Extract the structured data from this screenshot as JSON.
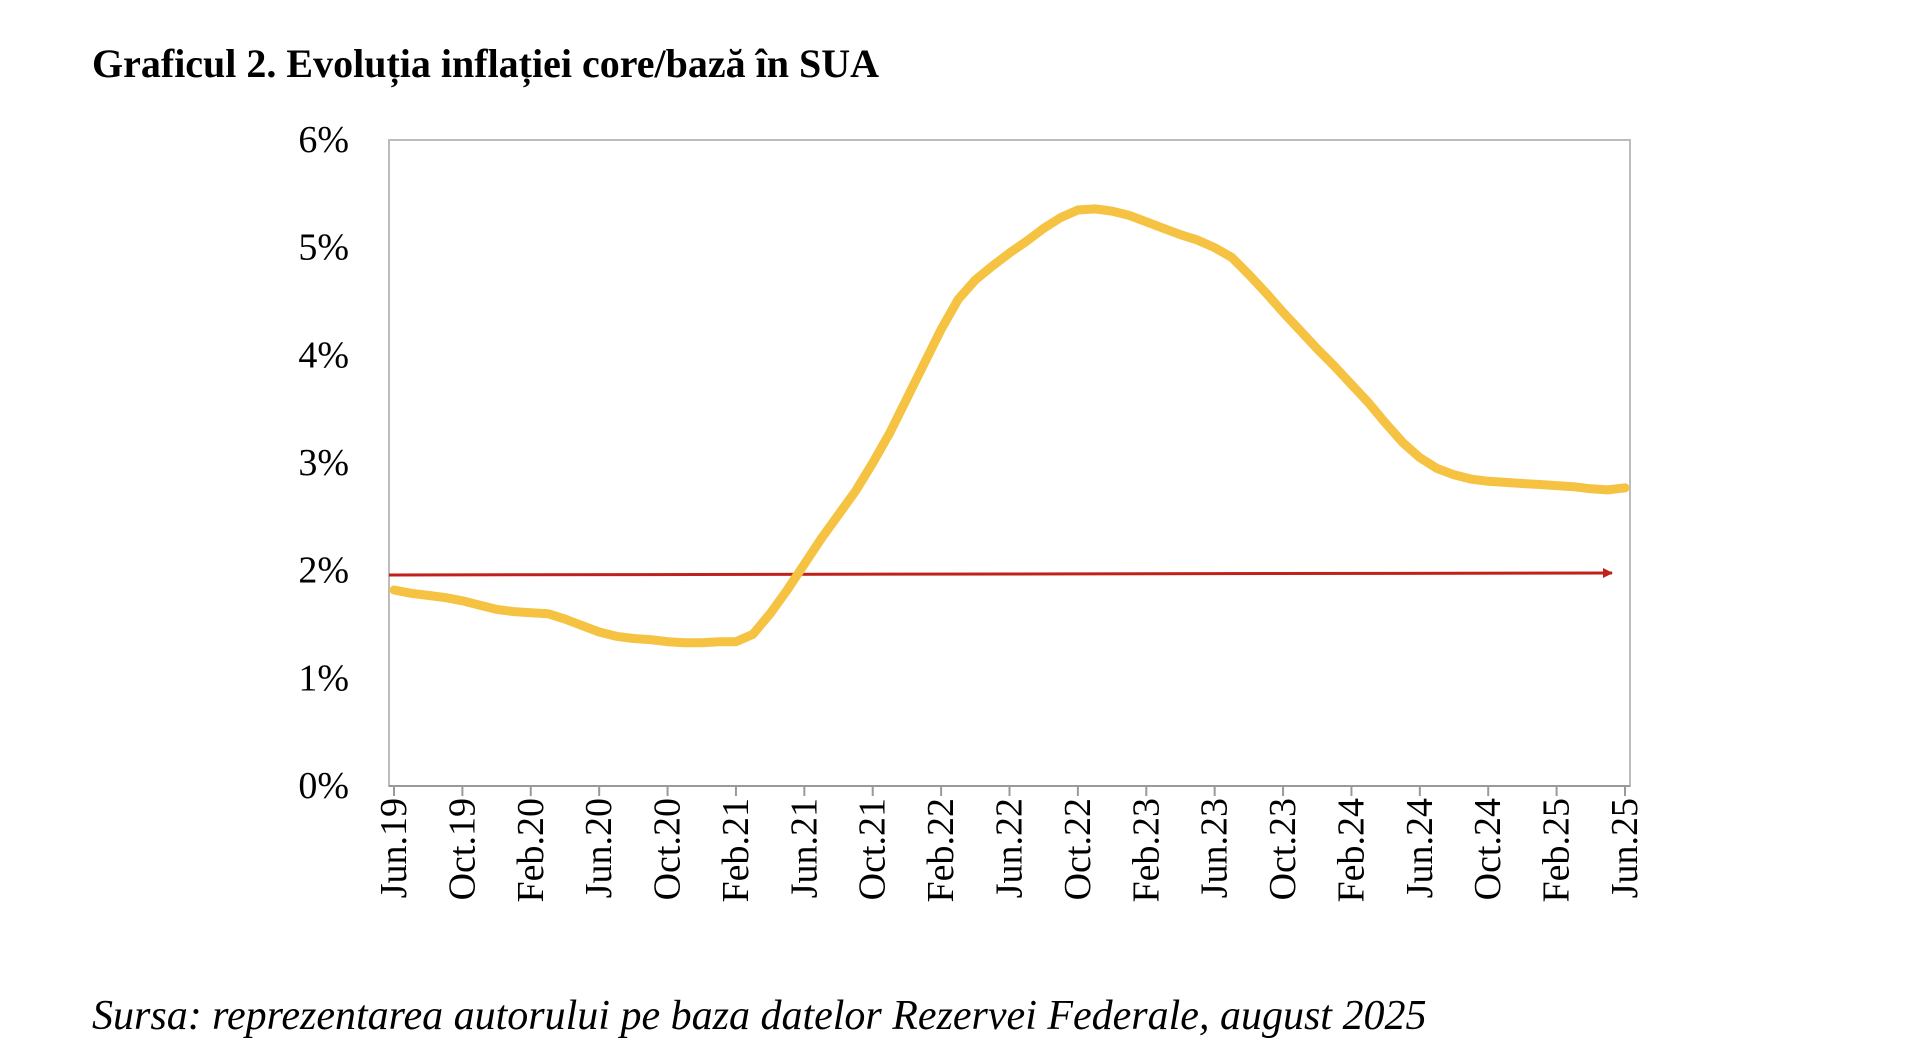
{
  "title": "Graficul 2. Evoluția inflației core/bază în SUA",
  "source": "Sursa: reprezentarea autorului pe baza datelor Rezervei Federale, august 2025",
  "colors": {
    "series": "#f5c242",
    "target_arrow": "#c0211b",
    "frame": "#bcbcbc",
    "axis": "#999999"
  },
  "chart_data": {
    "type": "line",
    "title": "Graficul 2. Evoluția inflației core/bază în SUA",
    "xlabel": "",
    "ylabel": "",
    "ylim": [
      0,
      6
    ],
    "y_ticks": [
      "0%",
      "1%",
      "2%",
      "3%",
      "4%",
      "5%",
      "6%"
    ],
    "x_tick_labels": [
      "Jun.19",
      "Oct.19",
      "Feb.20",
      "Jun.20",
      "Oct.20",
      "Feb.21",
      "Jun.21",
      "Oct.21",
      "Feb.22",
      "Jun.22",
      "Oct.22",
      "Feb.23",
      "Jun.23",
      "Oct.23",
      "Feb.24",
      "Jun.24",
      "Oct.24",
      "Feb.25",
      "Jun.25"
    ],
    "x": [
      "Jun.19",
      "Jul.19",
      "Aug.19",
      "Sep.19",
      "Oct.19",
      "Nov.19",
      "Dec.19",
      "Jan.20",
      "Feb.20",
      "Mar.20",
      "Apr.20",
      "May.20",
      "Jun.20",
      "Jul.20",
      "Aug.20",
      "Sep.20",
      "Oct.20",
      "Nov.20",
      "Dec.20",
      "Jan.21",
      "Feb.21",
      "Mar.21",
      "Apr.21",
      "May.21",
      "Jun.21",
      "Jul.21",
      "Aug.21",
      "Sep.21",
      "Oct.21",
      "Nov.21",
      "Dec.21",
      "Jan.22",
      "Feb.22",
      "Mar.22",
      "Apr.22",
      "May.22",
      "Jun.22",
      "Jul.22",
      "Aug.22",
      "Sep.22",
      "Oct.22",
      "Nov.22",
      "Dec.22",
      "Jan.23",
      "Feb.23",
      "Mar.23",
      "Apr.23",
      "May.23",
      "Jun.23",
      "Jul.23",
      "Aug.23",
      "Sep.23",
      "Oct.23",
      "Nov.23",
      "Dec.23",
      "Jan.24",
      "Feb.24",
      "Mar.24",
      "Apr.24",
      "May.24",
      "Jun.24",
      "Jul.24",
      "Aug.24",
      "Sep.24",
      "Oct.24",
      "Nov.24",
      "Dec.24",
      "Jan.25",
      "Feb.25",
      "Mar.25",
      "Apr.25",
      "May.25",
      "Jun.25"
    ],
    "series": [
      {
        "values": [
          1.82,
          1.79,
          1.77,
          1.75,
          1.72,
          1.68,
          1.64,
          1.62,
          1.61,
          1.6,
          1.55,
          1.49,
          1.43,
          1.39,
          1.37,
          1.36,
          1.34,
          1.33,
          1.33,
          1.34,
          1.34,
          1.41,
          1.6,
          1.82,
          2.06,
          2.3,
          2.52,
          2.74,
          3.0,
          3.28,
          3.6,
          3.92,
          4.24,
          4.52,
          4.7,
          4.83,
          4.95,
          5.06,
          5.18,
          5.28,
          5.35,
          5.36,
          5.34,
          5.3,
          5.24,
          5.18,
          5.12,
          5.07,
          5.0,
          4.91,
          4.75,
          4.58,
          4.4,
          4.23,
          4.06,
          3.9,
          3.73,
          3.56,
          3.37,
          3.19,
          3.05,
          2.95,
          2.89,
          2.85,
          2.83,
          2.82,
          2.81,
          2.8,
          2.79,
          2.78,
          2.76,
          2.75,
          2.77
        ]
      }
    ],
    "target_line": {
      "value": 1.96,
      "style": "arrow"
    },
    "grid": false,
    "legend": "none"
  }
}
